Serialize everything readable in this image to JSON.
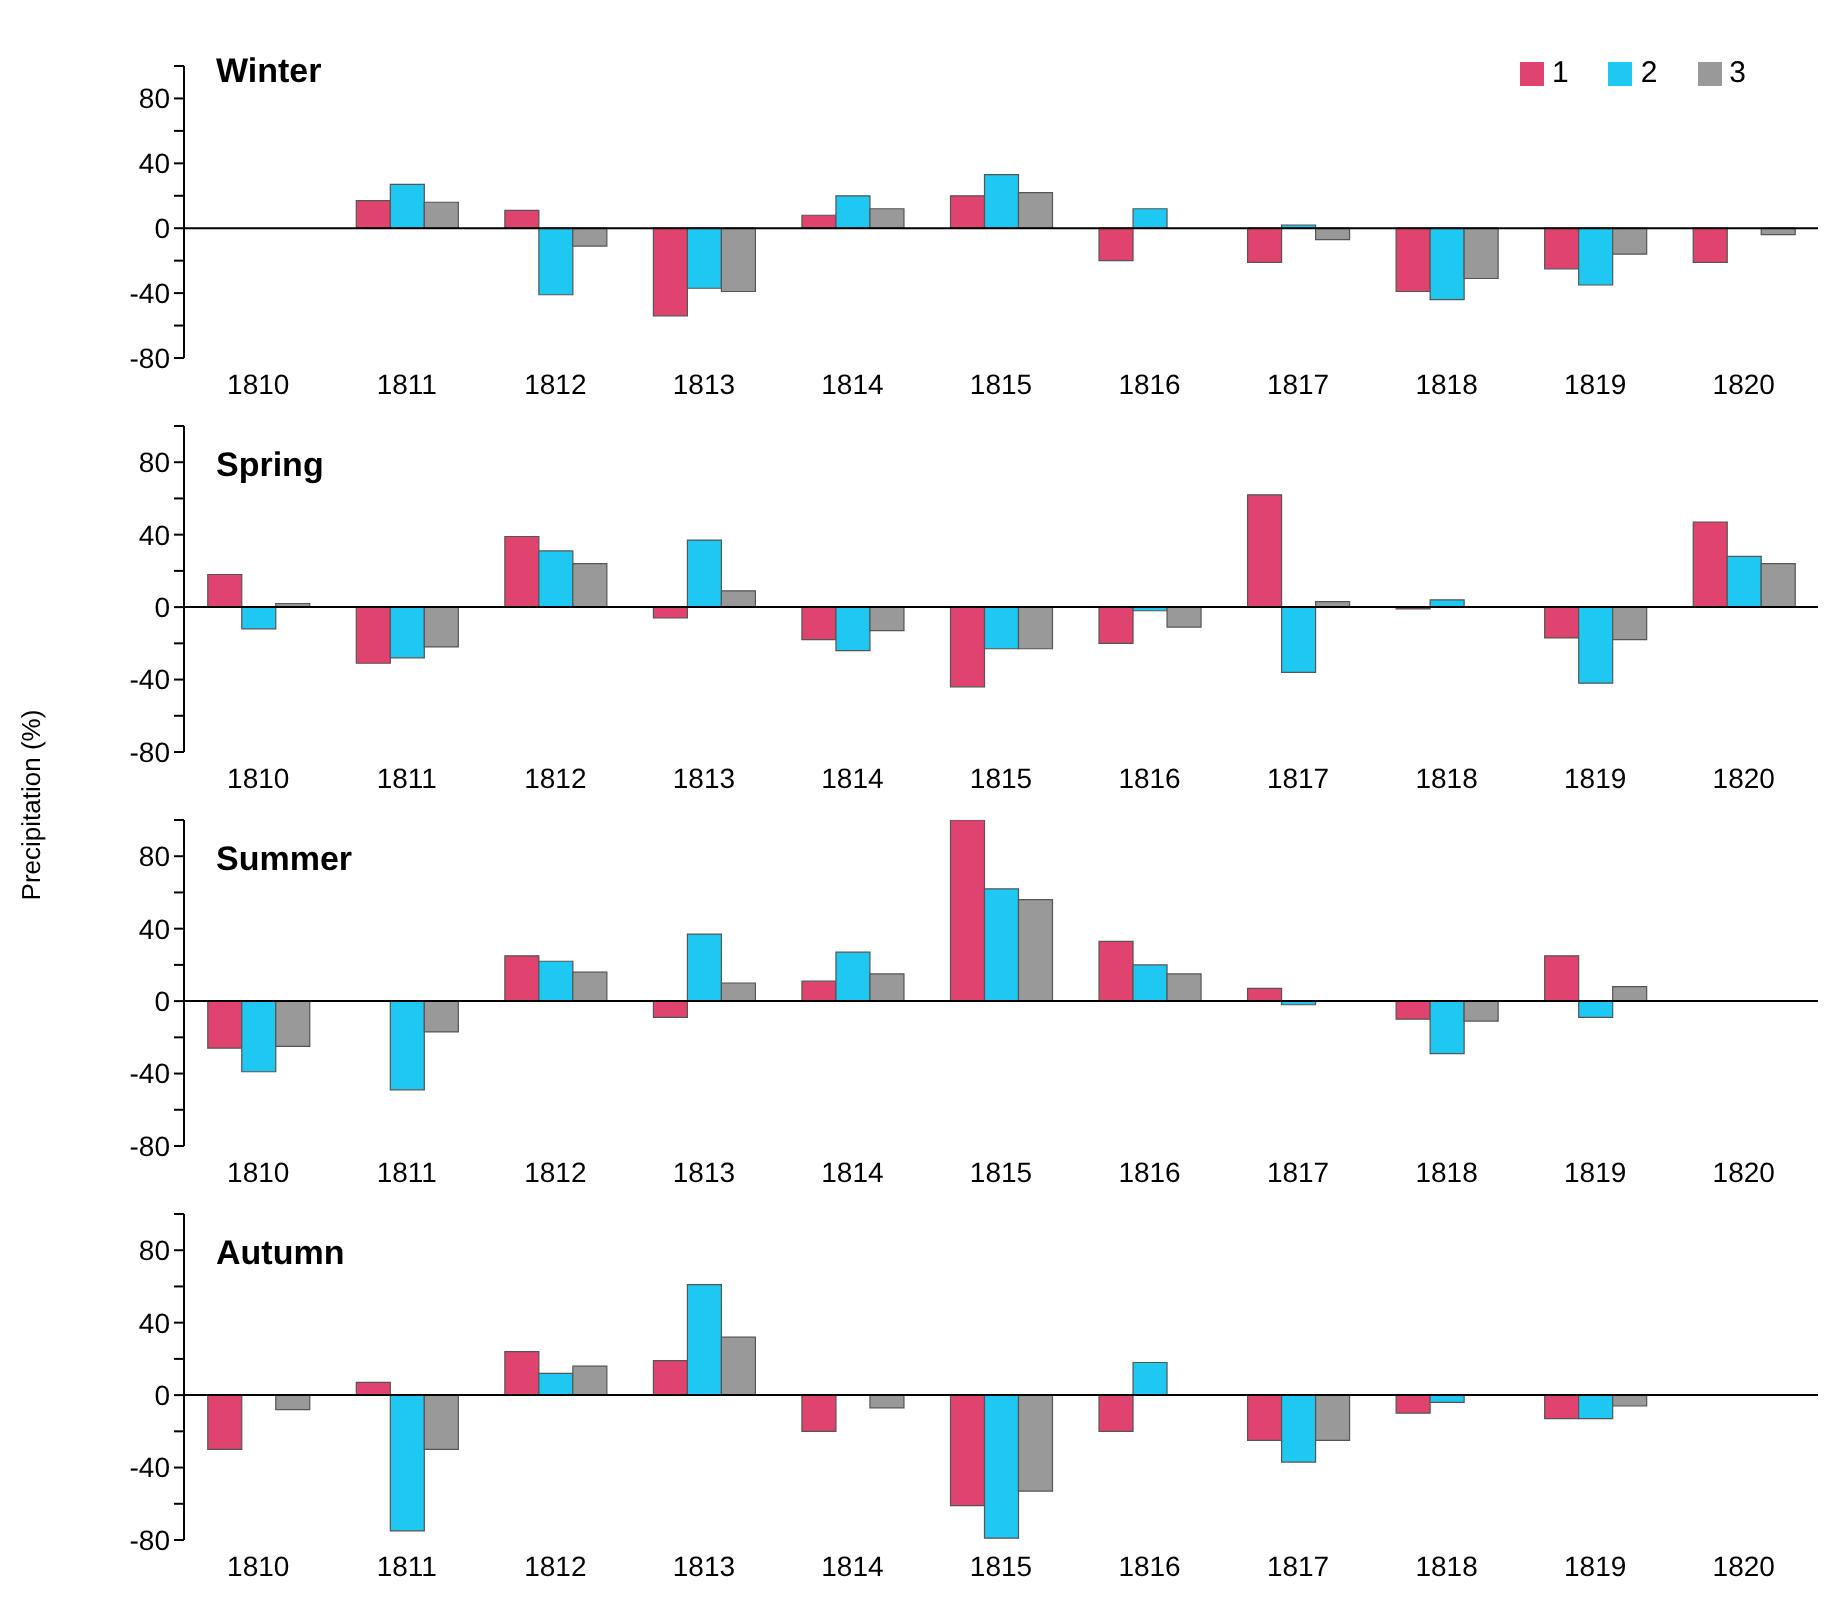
{
  "chart_data": [
    {
      "type": "bar",
      "title": "Winter",
      "categories": [
        "1810",
        "1811",
        "1812",
        "1813",
        "1814",
        "1815",
        "1816",
        "1817",
        "1818",
        "1819",
        "1820"
      ],
      "series": [
        {
          "name": "1",
          "color": "#e0446e",
          "values": [
            null,
            17,
            11,
            -54,
            8,
            20,
            -20,
            -21,
            -39,
            -25,
            -21
          ]
        },
        {
          "name": "2",
          "color": "#1fc8f0",
          "values": [
            null,
            27,
            -41,
            -37,
            20,
            33,
            12,
            2,
            -44,
            -35,
            null
          ]
        },
        {
          "name": "3",
          "color": "#999999",
          "values": [
            null,
            16,
            -11,
            -39,
            12,
            22,
            null,
            -7,
            -31,
            -16,
            -4
          ]
        }
      ],
      "ylim": [
        -80,
        100
      ],
      "yticks": [
        -80,
        {
          "value": -60,
          "label": null
        },
        -40,
        {
          "value": -20,
          "label": null
        },
        0,
        {
          "value": 20,
          "label": null
        },
        40,
        {
          "value": 60,
          "label": null
        },
        80,
        {
          "value": 100,
          "label": null
        }
      ],
      "legend": "top right"
    },
    {
      "type": "bar",
      "title": "Spring",
      "ylabel": "Precipitation (%)",
      "categories": [
        "1810",
        "1811",
        "1812",
        "1813",
        "1814",
        "1815",
        "1816",
        "1817",
        "1818",
        "1819",
        "1820"
      ],
      "series": [
        {
          "color": "#e0446e",
          "values": [
            18,
            -31,
            39,
            -6,
            -18,
            -44,
            -20,
            62,
            -1,
            -17,
            47
          ]
        },
        {
          "color": "#1fc8f0",
          "values": [
            -12,
            -28,
            31,
            37,
            -24,
            -23,
            -2,
            -36,
            4,
            -42,
            28
          ]
        },
        {
          "color": "#999999",
          "values": [
            2,
            -22,
            24,
            9,
            -13,
            -23,
            -11,
            3,
            null,
            -18,
            24
          ]
        }
      ],
      "ylim": [
        -80,
        100
      ],
      "yticks": [
        -80,
        {
          "value": -60,
          "label": null
        },
        -40,
        {
          "value": -20,
          "label": null
        },
        0,
        {
          "value": 20,
          "label": null
        },
        40,
        {
          "value": 60,
          "label": null
        },
        80,
        {
          "value": 100,
          "label": null
        }
      ]
    },
    {
      "type": "bar",
      "title": "Summer",
      "categories": [
        "1810",
        "1811",
        "1812",
        "1813",
        "1814",
        "1815",
        "1816",
        "1817",
        "1818",
        "1819",
        "1820"
      ],
      "series": [
        {
          "color": "#e0446e",
          "values": [
            -26,
            null,
            25,
            -9,
            11,
            100,
            33,
            7,
            -10,
            25,
            null
          ]
        },
        {
          "color": "#1fc8f0",
          "values": [
            -39,
            -49,
            22,
            37,
            27,
            62,
            20,
            -2,
            -29,
            -9,
            null
          ]
        },
        {
          "color": "#999999",
          "values": [
            -25,
            -17,
            16,
            10,
            15,
            56,
            15,
            null,
            -11,
            8,
            null
          ]
        }
      ],
      "ylim": [
        -80,
        100
      ],
      "yticks": [
        -80,
        {
          "value": -60,
          "label": null
        },
        -40,
        {
          "value": -20,
          "label": null
        },
        0,
        {
          "value": 20,
          "label": null
        },
        40,
        {
          "value": 60,
          "label": null
        },
        80,
        {
          "value": 100,
          "label": null
        }
      ]
    },
    {
      "type": "bar",
      "title": "Autumn",
      "categories": [
        "1810",
        "1811",
        "1812",
        "1813",
        "1814",
        "1815",
        "1816",
        "1817",
        "1818",
        "1819",
        "1820"
      ],
      "series": [
        {
          "color": "#e0446e",
          "values": [
            -30,
            7,
            24,
            19,
            -20,
            -61,
            -20,
            -25,
            -10,
            -13,
            null
          ]
        },
        {
          "color": "#1fc8f0",
          "values": [
            null,
            -75,
            12,
            61,
            null,
            -79,
            18,
            -37,
            -4,
            -13,
            null
          ]
        },
        {
          "color": "#999999",
          "values": [
            -8,
            -30,
            16,
            32,
            -7,
            -53,
            null,
            -25,
            null,
            -6,
            null
          ]
        }
      ],
      "ylim": [
        -80,
        100
      ],
      "yticks": [
        -80,
        {
          "value": -60,
          "label": null
        },
        -40,
        {
          "value": -20,
          "label": null
        },
        0,
        {
          "value": 20,
          "label": null
        },
        40,
        {
          "value": 60,
          "label": null
        },
        80,
        {
          "value": 100,
          "label": null
        }
      ]
    }
  ]
}
